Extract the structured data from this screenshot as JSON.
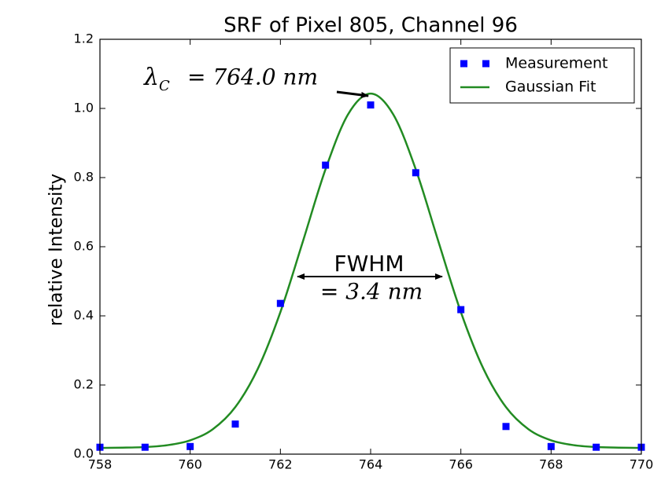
{
  "chart_data": {
    "type": "line",
    "title": "SRF of Pixel 805, Channel 96",
    "y_label": "relative Intensity",
    "xlim": [
      758,
      770
    ],
    "ylim": [
      0,
      1.2
    ],
    "xticks": [
      758,
      760,
      762,
      764,
      766,
      768,
      770
    ],
    "yticks": [
      {
        "value": 0,
        "label": "0.0"
      },
      0.2,
      0.4,
      0.6,
      0.8,
      {
        "value": 1,
        "label": "1.0"
      },
      1.2
    ],
    "grid": false,
    "legend": "upper right",
    "series": [
      {
        "name": "Measurement",
        "color": "#0000ff",
        "marker": "square",
        "x": [
          758,
          759,
          760,
          761,
          762,
          763,
          764,
          765,
          766,
          767,
          768,
          769,
          770
        ],
        "values": [
          0.02,
          0.02,
          0.022,
          0.087,
          0.436,
          0.836,
          1.01,
          0.814,
          0.418,
          0.08,
          0.022,
          0.02,
          0.02
        ]
      },
      {
        "name": "Gaussian Fit",
        "color": "#228b22",
        "marker": "none",
        "x": [
          758,
          758.5,
          759,
          759.5,
          760,
          760.5,
          761,
          761.5,
          762,
          762.5,
          763,
          763.5,
          764,
          764.5,
          765,
          765.5,
          766,
          766.5,
          767,
          767.5,
          768,
          768.5,
          769,
          769.5,
          770
        ],
        "values": [
          0.018,
          0.0187,
          0.0206,
          0.026,
          0.04,
          0.072,
          0.136,
          0.247,
          0.411,
          0.616,
          0.824,
          0.983,
          1.043,
          0.983,
          0.824,
          0.616,
          0.411,
          0.247,
          0.136,
          0.072,
          0.04,
          0.026,
          0.0206,
          0.0187,
          0.018
        ]
      }
    ],
    "peak_annotation": {
      "symbol": "λ",
      "subscript": "C",
      "text": "= 764.0 nm"
    },
    "fwhm_annotation": {
      "label": "FWHM",
      "text": "= 3.4 nm"
    }
  }
}
